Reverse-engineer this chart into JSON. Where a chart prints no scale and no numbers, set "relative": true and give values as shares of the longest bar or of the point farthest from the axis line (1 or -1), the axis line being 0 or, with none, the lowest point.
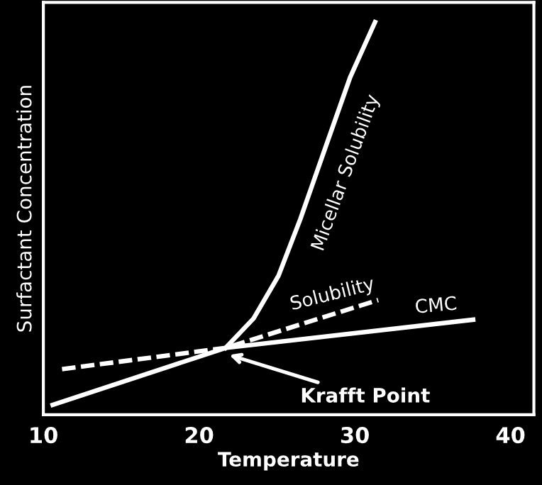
{
  "chart_data": {
    "type": "line",
    "xlabel": "Temperature",
    "ylabel": "Surfactant Concentration",
    "relative": true,
    "xlim": [
      10,
      41.5
    ],
    "xticks": [
      10,
      20,
      30,
      40
    ],
    "grid": false,
    "legend": false,
    "marker": "none",
    "series": [
      {
        "name": "CMC",
        "color": "#ffffff",
        "line_style": "solid",
        "x": [
          10.6,
          21.7,
          37.6
        ],
        "values": [
          0.025,
          0.17,
          0.242
        ]
      },
      {
        "name": "Solubility",
        "color": "#ffffff",
        "line_style": "dashed",
        "x": [
          11.2,
          21.7,
          31.5
        ],
        "values": [
          0.116,
          0.17,
          0.292
        ]
      },
      {
        "name": "Micellar Solubility",
        "color": "#ffffff",
        "line_style": "solid",
        "x": [
          21.7,
          23.5,
          25.1,
          26.5,
          28.1,
          29.7,
          31.3
        ],
        "values": [
          0.17,
          0.245,
          0.354,
          0.498,
          0.679,
          0.859,
          1.0
        ]
      }
    ],
    "annotations": [
      {
        "text": "Krafft Point",
        "x": 21.7,
        "y": 0.17
      }
    ]
  }
}
